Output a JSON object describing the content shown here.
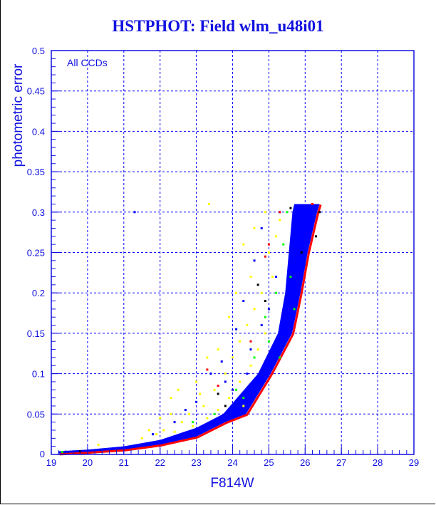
{
  "chart_data": {
    "type": "scatter",
    "title": "HSTPHOT: Field wlm_u48i01",
    "xlabel": "F814W",
    "ylabel": "photometric error",
    "annotation": "All CCDs",
    "xlim": [
      19,
      29
    ],
    "ylim": [
      0,
      0.5
    ],
    "xticks": [
      "19",
      "20",
      "21",
      "22",
      "23",
      "24",
      "25",
      "26",
      "27",
      "28",
      "29"
    ],
    "yticks": [
      "0",
      "0.05",
      "0.1",
      "0.15",
      "0.2",
      "0.25",
      "0.3",
      "0.35",
      "0.4",
      "0.45",
      "0.5"
    ],
    "grid": true,
    "colors": {
      "axis": "#1010e0",
      "grid": "#0000ff",
      "blue": "#0000ff",
      "red": "#ff0000",
      "green": "#00ff00",
      "yellow": "#ffff00",
      "black": "#000000"
    },
    "dense_band": {
      "color": "blue",
      "lower": [
        [
          19.2,
          0.001
        ],
        [
          20,
          0.003
        ],
        [
          21,
          0.006
        ],
        [
          22,
          0.012
        ],
        [
          23,
          0.022
        ],
        [
          23.8,
          0.04
        ],
        [
          24.37,
          0.05
        ],
        [
          25.05,
          0.1
        ],
        [
          25.64,
          0.15
        ],
        [
          25.87,
          0.2
        ],
        [
          26.07,
          0.25
        ],
        [
          26.33,
          0.3
        ],
        [
          26.4,
          0.31
        ]
      ],
      "upper": [
        [
          19.2,
          0.004
        ],
        [
          20,
          0.006
        ],
        [
          21,
          0.01
        ],
        [
          22,
          0.018
        ],
        [
          23,
          0.033
        ],
        [
          23.74,
          0.05
        ],
        [
          24.7,
          0.1
        ],
        [
          25.25,
          0.15
        ],
        [
          25.45,
          0.2
        ],
        [
          25.55,
          0.25
        ],
        [
          25.65,
          0.3
        ],
        [
          25.7,
          0.31
        ]
      ]
    },
    "series": [
      {
        "name": "yellow",
        "points": [
          [
            23.35,
            0.31
          ],
          [
            22.3,
            0.07
          ],
          [
            22.5,
            0.08
          ],
          [
            23.0,
            0.09
          ],
          [
            23.3,
            0.12
          ],
          [
            23.6,
            0.13
          ],
          [
            23.9,
            0.17
          ],
          [
            24.1,
            0.2
          ],
          [
            24.3,
            0.26
          ],
          [
            24.5,
            0.22
          ],
          [
            24.6,
            0.28
          ],
          [
            24.9,
            0.3
          ],
          [
            23.2,
            0.06
          ],
          [
            22.8,
            0.05
          ],
          [
            22.6,
            0.04
          ],
          [
            22.1,
            0.03
          ],
          [
            21.9,
            0.025
          ],
          [
            21.5,
            0.02
          ],
          [
            20.3,
            0.012
          ],
          [
            23.5,
            0.08
          ],
          [
            23.8,
            0.1
          ],
          [
            24.0,
            0.12
          ],
          [
            24.2,
            0.14
          ],
          [
            24.4,
            0.16
          ],
          [
            24.6,
            0.18
          ],
          [
            24.8,
            0.2
          ],
          [
            25.0,
            0.25
          ],
          [
            25.2,
            0.27
          ],
          [
            24.9,
            0.15
          ],
          [
            24.5,
            0.11
          ],
          [
            24.2,
            0.09
          ],
          [
            23.9,
            0.07
          ],
          [
            23.6,
            0.055
          ],
          [
            23.3,
            0.045
          ],
          [
            22.9,
            0.035
          ],
          [
            22.4,
            0.028
          ],
          [
            22.0,
            0.045
          ],
          [
            21.7,
            0.03
          ],
          [
            25.3,
            0.29
          ],
          [
            25.1,
            0.22
          ],
          [
            24.7,
            0.13
          ],
          [
            24.3,
            0.06
          ],
          [
            22.3,
            0.05
          ],
          [
            23.1,
            0.075
          ]
        ]
      },
      {
        "name": "blue",
        "points": [
          [
            21.3,
            0.3
          ],
          [
            24.1,
            0.155
          ],
          [
            23.7,
            0.115
          ],
          [
            24.3,
            0.19
          ],
          [
            23.4,
            0.1
          ],
          [
            24.6,
            0.24
          ],
          [
            24.8,
            0.28
          ],
          [
            23.0,
            0.065
          ],
          [
            22.7,
            0.055
          ],
          [
            24.0,
            0.08
          ],
          [
            24.5,
            0.13
          ],
          [
            25.0,
            0.18
          ],
          [
            25.2,
            0.22
          ],
          [
            24.8,
            0.16
          ],
          [
            22.4,
            0.04
          ],
          [
            21.8,
            0.025
          ],
          [
            25.3,
            0.3
          ],
          [
            24.4,
            0.1
          ],
          [
            23.8,
            0.09
          ]
        ]
      },
      {
        "name": "green",
        "points": [
          [
            24.9,
            0.17
          ],
          [
            25.2,
            0.2
          ],
          [
            25.4,
            0.26
          ],
          [
            24.6,
            0.12
          ],
          [
            24.1,
            0.08
          ],
          [
            23.5,
            0.05
          ],
          [
            22.9,
            0.04
          ],
          [
            19.3,
            0.003
          ],
          [
            25.5,
            0.3
          ],
          [
            25.0,
            0.14
          ],
          [
            25.6,
            0.22
          ],
          [
            25.7,
            0.18
          ],
          [
            25.3,
            0.12
          ],
          [
            24.3,
            0.07
          ]
        ]
      },
      {
        "name": "black",
        "points": [
          [
            19.8,
            0.004
          ],
          [
            23.6,
            0.075
          ],
          [
            24.7,
            0.21
          ],
          [
            25.6,
            0.305
          ],
          [
            26.4,
            0.3
          ],
          [
            26.3,
            0.27
          ],
          [
            25.9,
            0.25
          ],
          [
            24.9,
            0.19
          ],
          [
            23.8,
            0.06
          ]
        ]
      },
      {
        "name": "red",
        "points": [
          [
            23.3,
            0.105
          ],
          [
            24.9,
            0.245
          ],
          [
            25.0,
            0.26
          ],
          [
            24.5,
            0.14
          ],
          [
            25.3,
            0.3
          ],
          [
            23.6,
            0.085
          ],
          [
            26.2,
            0.31
          ]
        ]
      }
    ]
  }
}
